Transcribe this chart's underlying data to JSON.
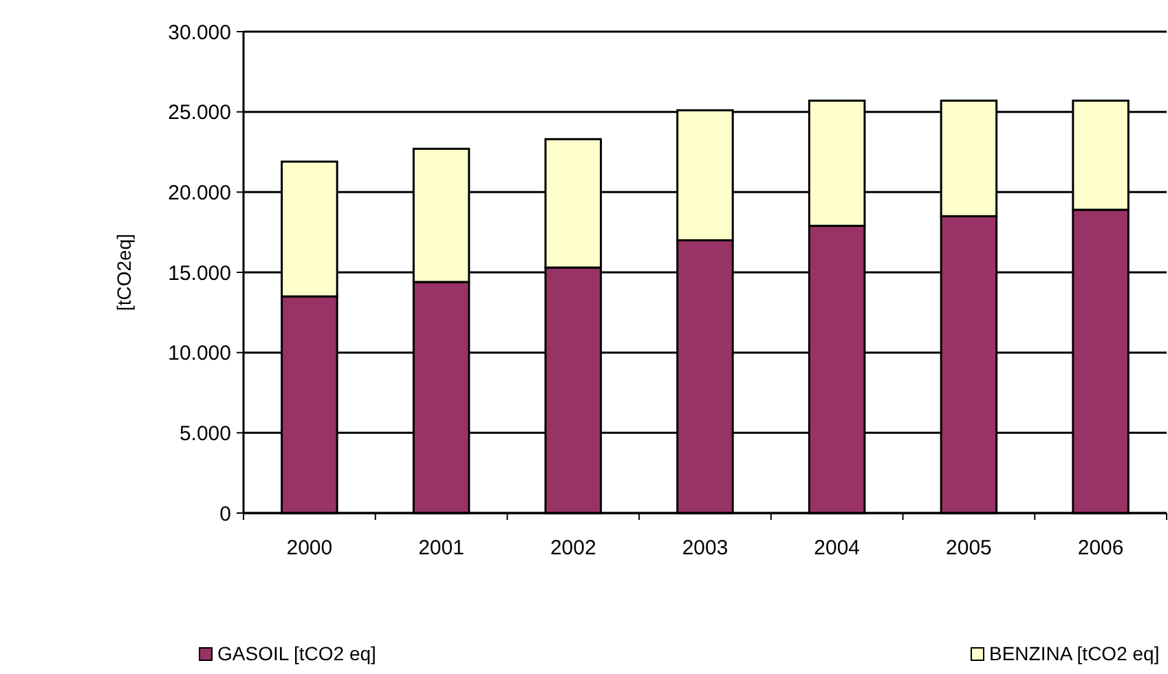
{
  "chart_data": {
    "type": "bar",
    "stacked": true,
    "ylabel": "[tCO2eq]",
    "categories": [
      "2000",
      "2001",
      "2002",
      "2003",
      "2004",
      "2005",
      "2006"
    ],
    "series": [
      {
        "name": "GASOIL [tCO2 eq]",
        "color": "#993366",
        "values": [
          13500,
          14400,
          15300,
          17000,
          17900,
          18500,
          18900
        ]
      },
      {
        "name": "BENZINA [tCO2 eq]",
        "color": "#ffffcc",
        "values": [
          8400,
          8300,
          8000,
          8100,
          7800,
          7200,
          6800
        ]
      }
    ],
    "ylim": [
      0,
      30000
    ],
    "yticks": [
      0,
      {
        "value": 5000,
        "label": "5.000"
      },
      {
        "value": 10000,
        "label": "10.000"
      },
      {
        "value": 15000,
        "label": "15.000"
      },
      {
        "value": 20000,
        "label": "20.000"
      },
      {
        "value": 25000,
        "label": "25.000"
      },
      {
        "value": 30000,
        "label": "30.000"
      }
    ],
    "grid": "y",
    "legend": "bottom"
  }
}
